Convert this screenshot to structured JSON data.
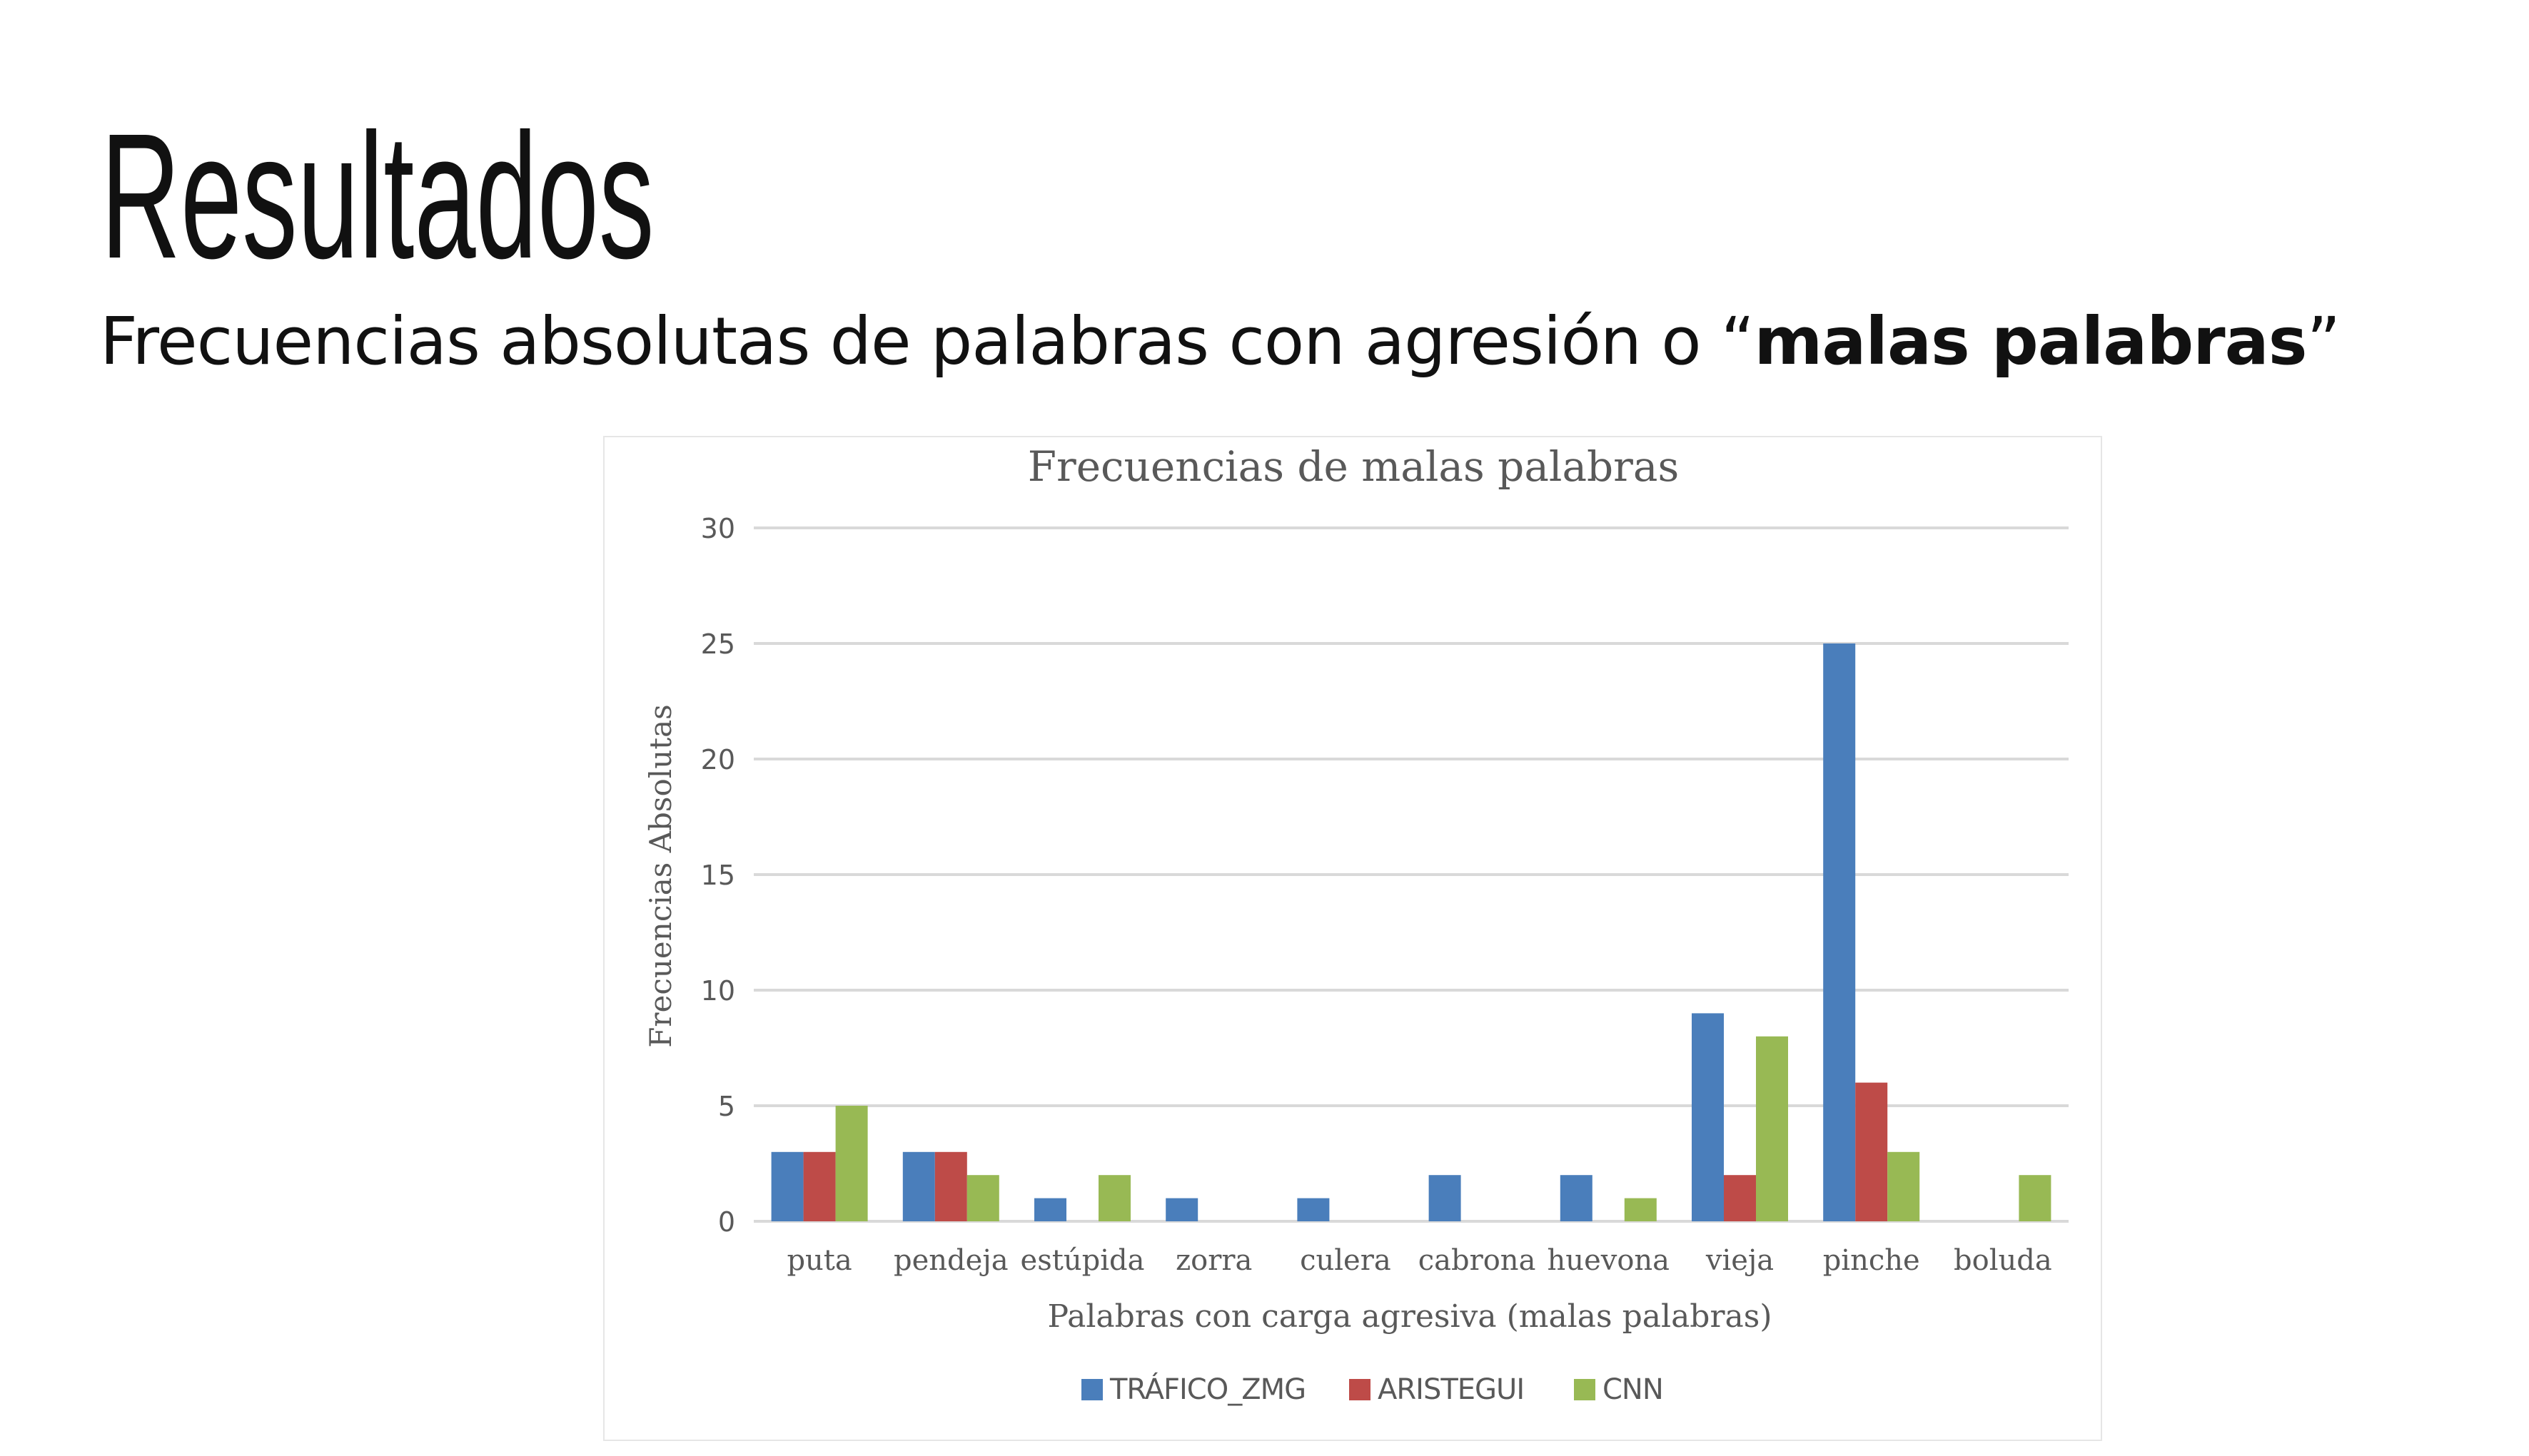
{
  "slide": {
    "title": "Resultados",
    "subtitle_pre": "Frecuencias absolutas de palabras con agresión o “",
    "subtitle_bold": "malas palabras",
    "subtitle_post": "”"
  },
  "chart_data": {
    "type": "bar",
    "title": "Frecuencias de malas palabras",
    "xlabel": "Palabras con carga agresiva (malas palabras)",
    "ylabel": "Frecuencias Absolutas",
    "ylim": [
      0,
      30
    ],
    "yticks": [
      0,
      5,
      10,
      15,
      20,
      25,
      30
    ],
    "grid": true,
    "legend_position": "bottom",
    "categories": [
      "puta",
      "pendeja",
      "estúpida",
      "zorra",
      "culera",
      "cabrona",
      "huevona",
      "vieja",
      "pinche",
      "boluda"
    ],
    "series": [
      {
        "name": "TRÁFICO_ZMG",
        "color": "#4a7ebb",
        "values": [
          3,
          3,
          1,
          1,
          1,
          2,
          2,
          9,
          25,
          0
        ]
      },
      {
        "name": "ARISTEGUI",
        "color": "#be4b48",
        "values": [
          3,
          3,
          0,
          0,
          0,
          0,
          0,
          2,
          6,
          0
        ]
      },
      {
        "name": "CNN",
        "color": "#98b954",
        "values": [
          5,
          2,
          2,
          0,
          0,
          0,
          1,
          8,
          3,
          2
        ]
      }
    ]
  }
}
